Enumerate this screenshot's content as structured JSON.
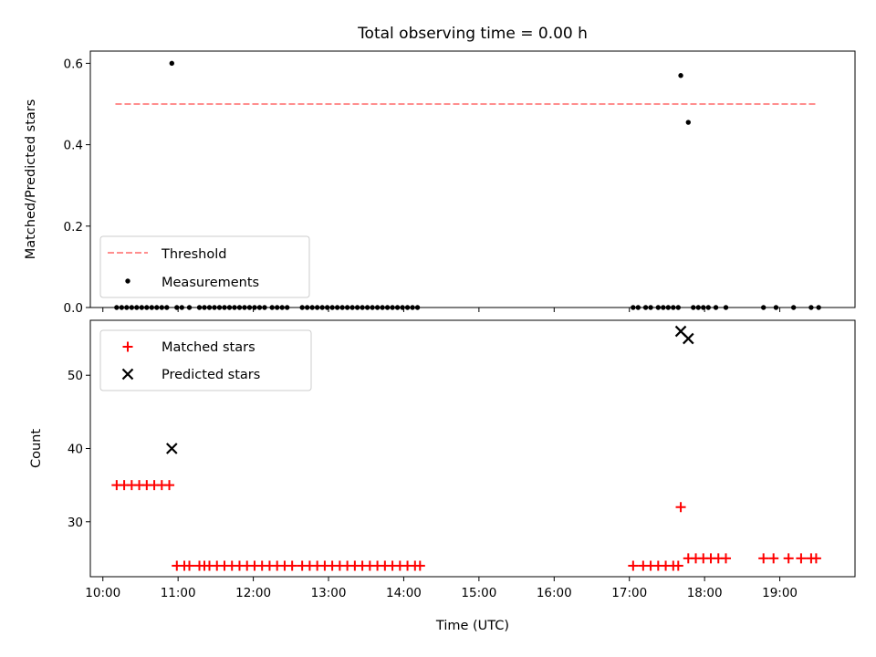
{
  "chart_data": [
    {
      "type": "scatter",
      "title": "Total observing time = 0.00 h",
      "xlabel": "",
      "ylabel": "Matched/Predicted stars",
      "xlim": [
        "09:50",
        "20:00"
      ],
      "ylim": [
        0,
        0.63
      ],
      "yticks": [
        0.0,
        0.2,
        0.4,
        0.6
      ],
      "ytick_labels": [
        "0.0",
        "0.2",
        "0.4",
        "0.6"
      ],
      "legend_position": "lower-left",
      "colors": {
        "threshold": "#ff7f7f",
        "measurements": "#000000"
      },
      "threshold": {
        "label": "Threshold",
        "value": 0.5,
        "x_start": "10:10",
        "x_end": "19:30"
      },
      "measurements": {
        "label": "Measurements",
        "points": [
          [
            "10:11",
            0
          ],
          [
            "10:15",
            0
          ],
          [
            "10:19",
            0
          ],
          [
            "10:23",
            0
          ],
          [
            "10:27",
            0
          ],
          [
            "10:31",
            0
          ],
          [
            "10:35",
            0
          ],
          [
            "10:39",
            0
          ],
          [
            "10:43",
            0
          ],
          [
            "10:47",
            0
          ],
          [
            "10:51",
            0
          ],
          [
            "10:55",
            0.6
          ],
          [
            "10:59",
            0
          ],
          [
            "11:03",
            0
          ],
          [
            "11:09",
            0
          ],
          [
            "11:17",
            0
          ],
          [
            "11:21",
            0
          ],
          [
            "11:25",
            0
          ],
          [
            "11:29",
            0
          ],
          [
            "11:33",
            0
          ],
          [
            "11:37",
            0
          ],
          [
            "11:41",
            0
          ],
          [
            "11:45",
            0
          ],
          [
            "11:49",
            0
          ],
          [
            "11:53",
            0
          ],
          [
            "11:57",
            0
          ],
          [
            "12:01",
            0
          ],
          [
            "12:05",
            0
          ],
          [
            "12:09",
            0
          ],
          [
            "12:15",
            0
          ],
          [
            "12:19",
            0
          ],
          [
            "12:23",
            0
          ],
          [
            "12:27",
            0
          ],
          [
            "12:39",
            0
          ],
          [
            "12:43",
            0
          ],
          [
            "12:47",
            0
          ],
          [
            "12:51",
            0
          ],
          [
            "12:55",
            0
          ],
          [
            "12:59",
            0
          ],
          [
            "13:03",
            0
          ],
          [
            "13:07",
            0
          ],
          [
            "13:11",
            0
          ],
          [
            "13:15",
            0
          ],
          [
            "13:19",
            0
          ],
          [
            "13:23",
            0
          ],
          [
            "13:27",
            0
          ],
          [
            "13:31",
            0
          ],
          [
            "13:35",
            0
          ],
          [
            "13:39",
            0
          ],
          [
            "13:43",
            0
          ],
          [
            "13:47",
            0
          ],
          [
            "13:51",
            0
          ],
          [
            "13:55",
            0
          ],
          [
            "13:59",
            0
          ],
          [
            "14:03",
            0
          ],
          [
            "14:07",
            0
          ],
          [
            "14:11",
            0
          ],
          [
            "17:03",
            0
          ],
          [
            "17:07",
            0
          ],
          [
            "17:13",
            0
          ],
          [
            "17:17",
            0
          ],
          [
            "17:23",
            0
          ],
          [
            "17:27",
            0
          ],
          [
            "17:31",
            0
          ],
          [
            "17:35",
            0
          ],
          [
            "17:39",
            0
          ],
          [
            "17:41",
            0.57
          ],
          [
            "17:47",
            0.455
          ],
          [
            "17:51",
            0
          ],
          [
            "17:55",
            0
          ],
          [
            "17:59",
            0
          ],
          [
            "18:03",
            0
          ],
          [
            "18:09",
            0
          ],
          [
            "18:17",
            0
          ],
          [
            "18:47",
            0
          ],
          [
            "18:57",
            0
          ],
          [
            "19:11",
            0
          ],
          [
            "19:25",
            0
          ],
          [
            "19:31",
            0
          ]
        ]
      }
    },
    {
      "type": "scatter",
      "xlabel": "Time (UTC)",
      "ylabel": "Count",
      "xlim": [
        "09:50",
        "20:00"
      ],
      "ylim": [
        22.5,
        57.5
      ],
      "xticks": [
        "10:00",
        "11:00",
        "12:00",
        "13:00",
        "14:00",
        "15:00",
        "16:00",
        "17:00",
        "18:00",
        "19:00"
      ],
      "xtick_labels": [
        "10:00",
        "11:00",
        "12:00",
        "13:00",
        "14:00",
        "15:00",
        "16:00",
        "17:00",
        "18:00",
        "19:00"
      ],
      "yticks": [
        30,
        40,
        50
      ],
      "ytick_labels": [
        "30",
        "40",
        "50"
      ],
      "legend_position": "upper-left",
      "colors": {
        "matched": "#ff0000",
        "predicted": "#000000"
      },
      "series": [
        {
          "name": "Matched stars",
          "marker": "plus",
          "points": [
            [
              "10:11",
              35
            ],
            [
              "10:17",
              35
            ],
            [
              "10:23",
              35
            ],
            [
              "10:29",
              35
            ],
            [
              "10:35",
              35
            ],
            [
              "10:41",
              35
            ],
            [
              "10:47",
              35
            ],
            [
              "10:53",
              35
            ],
            [
              "10:59",
              24
            ],
            [
              "11:05",
              24
            ],
            [
              "11:09",
              24
            ],
            [
              "11:17",
              24
            ],
            [
              "11:21",
              24
            ],
            [
              "11:25",
              24
            ],
            [
              "11:31",
              24
            ],
            [
              "11:37",
              24
            ],
            [
              "11:43",
              24
            ],
            [
              "11:49",
              24
            ],
            [
              "11:55",
              24
            ],
            [
              "12:01",
              24
            ],
            [
              "12:07",
              24
            ],
            [
              "12:13",
              24
            ],
            [
              "12:19",
              24
            ],
            [
              "12:25",
              24
            ],
            [
              "12:31",
              24
            ],
            [
              "12:39",
              24
            ],
            [
              "12:45",
              24
            ],
            [
              "12:51",
              24
            ],
            [
              "12:57",
              24
            ],
            [
              "13:03",
              24
            ],
            [
              "13:09",
              24
            ],
            [
              "13:15",
              24
            ],
            [
              "13:21",
              24
            ],
            [
              "13:27",
              24
            ],
            [
              "13:33",
              24
            ],
            [
              "13:39",
              24
            ],
            [
              "13:45",
              24
            ],
            [
              "13:51",
              24
            ],
            [
              "13:57",
              24
            ],
            [
              "14:03",
              24
            ],
            [
              "14:09",
              24
            ],
            [
              "14:13",
              24
            ],
            [
              "17:03",
              24
            ],
            [
              "17:11",
              24
            ],
            [
              "17:17",
              24
            ],
            [
              "17:23",
              24
            ],
            [
              "17:29",
              24
            ],
            [
              "17:35",
              24
            ],
            [
              "17:39",
              24
            ],
            [
              "17:41",
              32
            ],
            [
              "17:47",
              25
            ],
            [
              "17:53",
              25
            ],
            [
              "17:59",
              25
            ],
            [
              "18:05",
              25
            ],
            [
              "18:11",
              25
            ],
            [
              "18:17",
              25
            ],
            [
              "18:47",
              25
            ],
            [
              "18:55",
              25
            ],
            [
              "19:07",
              25
            ],
            [
              "19:17",
              25
            ],
            [
              "19:25",
              25
            ],
            [
              "19:29",
              25
            ]
          ]
        },
        {
          "name": "Predicted stars",
          "marker": "x",
          "points": [
            [
              "10:55",
              40
            ],
            [
              "17:41",
              56
            ],
            [
              "17:47",
              55
            ]
          ]
        }
      ]
    }
  ]
}
